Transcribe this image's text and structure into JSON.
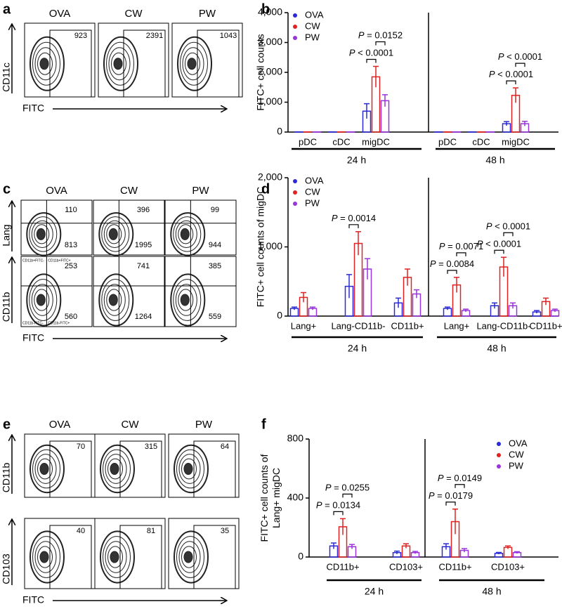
{
  "panel_letters": [
    "a",
    "b",
    "c",
    "d",
    "e",
    "f"
  ],
  "flow": [
    {
      "columns": [
        "OVA",
        "CW",
        "PW"
      ],
      "x_marker": "FITC",
      "rows": [
        {
          "marker": "CD11c",
          "counts": [
            [
              923
            ],
            [
              2391
            ],
            [
              1043
            ]
          ]
        }
      ]
    },
    {
      "columns": [
        "OVA",
        "CW",
        "PW"
      ],
      "x_marker": "FITC",
      "rows": [
        {
          "marker": "Lang",
          "counts": [
            [
              110,
              813
            ],
            [
              396,
              1995
            ],
            [
              99,
              944
            ]
          ]
        },
        {
          "marker": "CD11b",
          "counts": [
            [
              253,
              560
            ],
            [
              741,
              1264
            ],
            [
              385,
              559
            ]
          ],
          "quadrant_labels": [
            "CD11b+FITC-",
            "CD11b+FITC+",
            "CD11b-FITC-",
            "CD11b-FITC+"
          ]
        }
      ]
    },
    {
      "columns": [
        "OVA",
        "CW",
        "PW"
      ],
      "x_marker": "FITC",
      "rows": [
        {
          "marker": "CD11b",
          "counts": [
            [
              70
            ],
            [
              315
            ],
            [
              64
            ]
          ]
        },
        {
          "marker": "CD103",
          "counts": [
            [
              40
            ],
            [
              81
            ],
            [
              35
            ]
          ]
        }
      ]
    }
  ],
  "chart_data": [
    {
      "type": "bar",
      "y_label": [
        "FITC+ cell counts"
      ],
      "categories": [
        "pDC",
        "cDC",
        "migDC",
        "pDC",
        "cDC",
        "migDC"
      ],
      "groups": [
        "24 h",
        "48 h"
      ],
      "series": [
        {
          "name": "OVA",
          "color": "#2a2ad6",
          "values": [
            5,
            5,
            700,
            5,
            5,
            280
          ],
          "errors": [
            2,
            2,
            250,
            2,
            2,
            70
          ]
        },
        {
          "name": "CW",
          "color": "#e02222",
          "values": [
            5,
            5,
            1850,
            5,
            5,
            1230
          ],
          "errors": [
            2,
            2,
            350,
            2,
            2,
            250
          ]
        },
        {
          "name": "PW",
          "color": "#9933dd",
          "values": [
            5,
            5,
            1050,
            5,
            5,
            280
          ],
          "errors": [
            2,
            2,
            200,
            2,
            2,
            80
          ]
        }
      ],
      "ylim": [
        0,
        4000
      ],
      "yticks": [
        0,
        {
          "value": 1000,
          "label": "1,000"
        },
        {
          "value": 2000,
          "label": "2,000"
        },
        {
          "value": 3000,
          "label": "3,000"
        },
        {
          "value": 4000,
          "label": "4,000"
        }
      ],
      "legend": "upper left",
      "annotations": [
        {
          "text": "P < 0.0001",
          "category": 2,
          "between": [
            "OVA",
            "CW"
          ]
        },
        {
          "text": "P = 0.0152",
          "category": 2,
          "between": [
            "CW",
            "PW"
          ]
        },
        {
          "text": "P < 0.0001",
          "category": 5,
          "between": [
            "OVA",
            "CW"
          ]
        },
        {
          "text": "P < 0.0001",
          "category": 5,
          "between": [
            "CW",
            "PW"
          ]
        }
      ]
    },
    {
      "type": "bar",
      "y_label": [
        "FITC+ cell counts of migDC"
      ],
      "categories": [
        "Lang+",
        "Lang-CD11b-",
        "CD11b+",
        "Lang+",
        "Lang-CD11b-",
        "CD11b+"
      ],
      "groups": [
        "24 h",
        "48 h"
      ],
      "series": [
        {
          "name": "OVA",
          "color": "#2a2ad6",
          "values": [
            110,
            430,
            190,
            110,
            150,
            60
          ],
          "errors": [
            20,
            170,
            70,
            20,
            40,
            20
          ]
        },
        {
          "name": "CW",
          "color": "#e02222",
          "values": [
            270,
            1050,
            560,
            450,
            710,
            210
          ],
          "errors": [
            70,
            170,
            120,
            110,
            140,
            50
          ]
        },
        {
          "name": "PW",
          "color": "#9933dd",
          "values": [
            110,
            680,
            320,
            80,
            150,
            80
          ],
          "errors": [
            20,
            150,
            60,
            20,
            40,
            20
          ]
        }
      ],
      "ylim": [
        0,
        2000
      ],
      "yticks": [
        0,
        {
          "value": 1000,
          "label": "1,000"
        },
        {
          "value": 2000,
          "label": "2,000"
        }
      ],
      "legend": "upper left",
      "annotations": [
        {
          "text": "P = 0.0014",
          "category": 1,
          "between": [
            "OVA",
            "CW"
          ]
        },
        {
          "text": "P = 0.0084",
          "category": 3,
          "between": [
            "OVA",
            "CW"
          ]
        },
        {
          "text": "P = 0.0071",
          "category": 3,
          "between": [
            "CW",
            "PW"
          ]
        },
        {
          "text": "P < 0.0001",
          "category": 4,
          "between": [
            "OVA",
            "CW"
          ]
        },
        {
          "text": "P < 0.0001",
          "category": 4,
          "between": [
            "CW",
            "PW"
          ]
        }
      ]
    },
    {
      "type": "bar",
      "y_label": [
        "FITC+ cell counts of",
        "Lang+ migDC"
      ],
      "categories": [
        "CD11b+",
        "CD103+",
        "CD11b+",
        "CD103+"
      ],
      "groups": [
        "24 h",
        "48 h"
      ],
      "series": [
        {
          "name": "OVA",
          "color": "#2a2ad6",
          "values": [
            75,
            30,
            70,
            25
          ],
          "errors": [
            20,
            10,
            20,
            6
          ]
        },
        {
          "name": "CW",
          "color": "#e02222",
          "values": [
            205,
            75,
            240,
            65
          ],
          "errors": [
            55,
            15,
            85,
            10
          ]
        },
        {
          "name": "PW",
          "color": "#9933dd",
          "values": [
            70,
            30,
            45,
            30
          ],
          "errors": [
            15,
            8,
            12,
            6
          ]
        }
      ],
      "ylim": [
        0,
        800
      ],
      "yticks": [
        0,
        400,
        800
      ],
      "legend": "upper right",
      "annotations": [
        {
          "text": "P = 0.0134",
          "category": 0,
          "between": [
            "OVA",
            "CW"
          ]
        },
        {
          "text": "P = 0.0255",
          "category": 0,
          "between": [
            "CW",
            "PW"
          ]
        },
        {
          "text": "P = 0.0179",
          "category": 2,
          "between": [
            "OVA",
            "CW"
          ]
        },
        {
          "text": "P = 0.0149",
          "category": 2,
          "between": [
            "CW",
            "PW"
          ]
        }
      ]
    }
  ]
}
